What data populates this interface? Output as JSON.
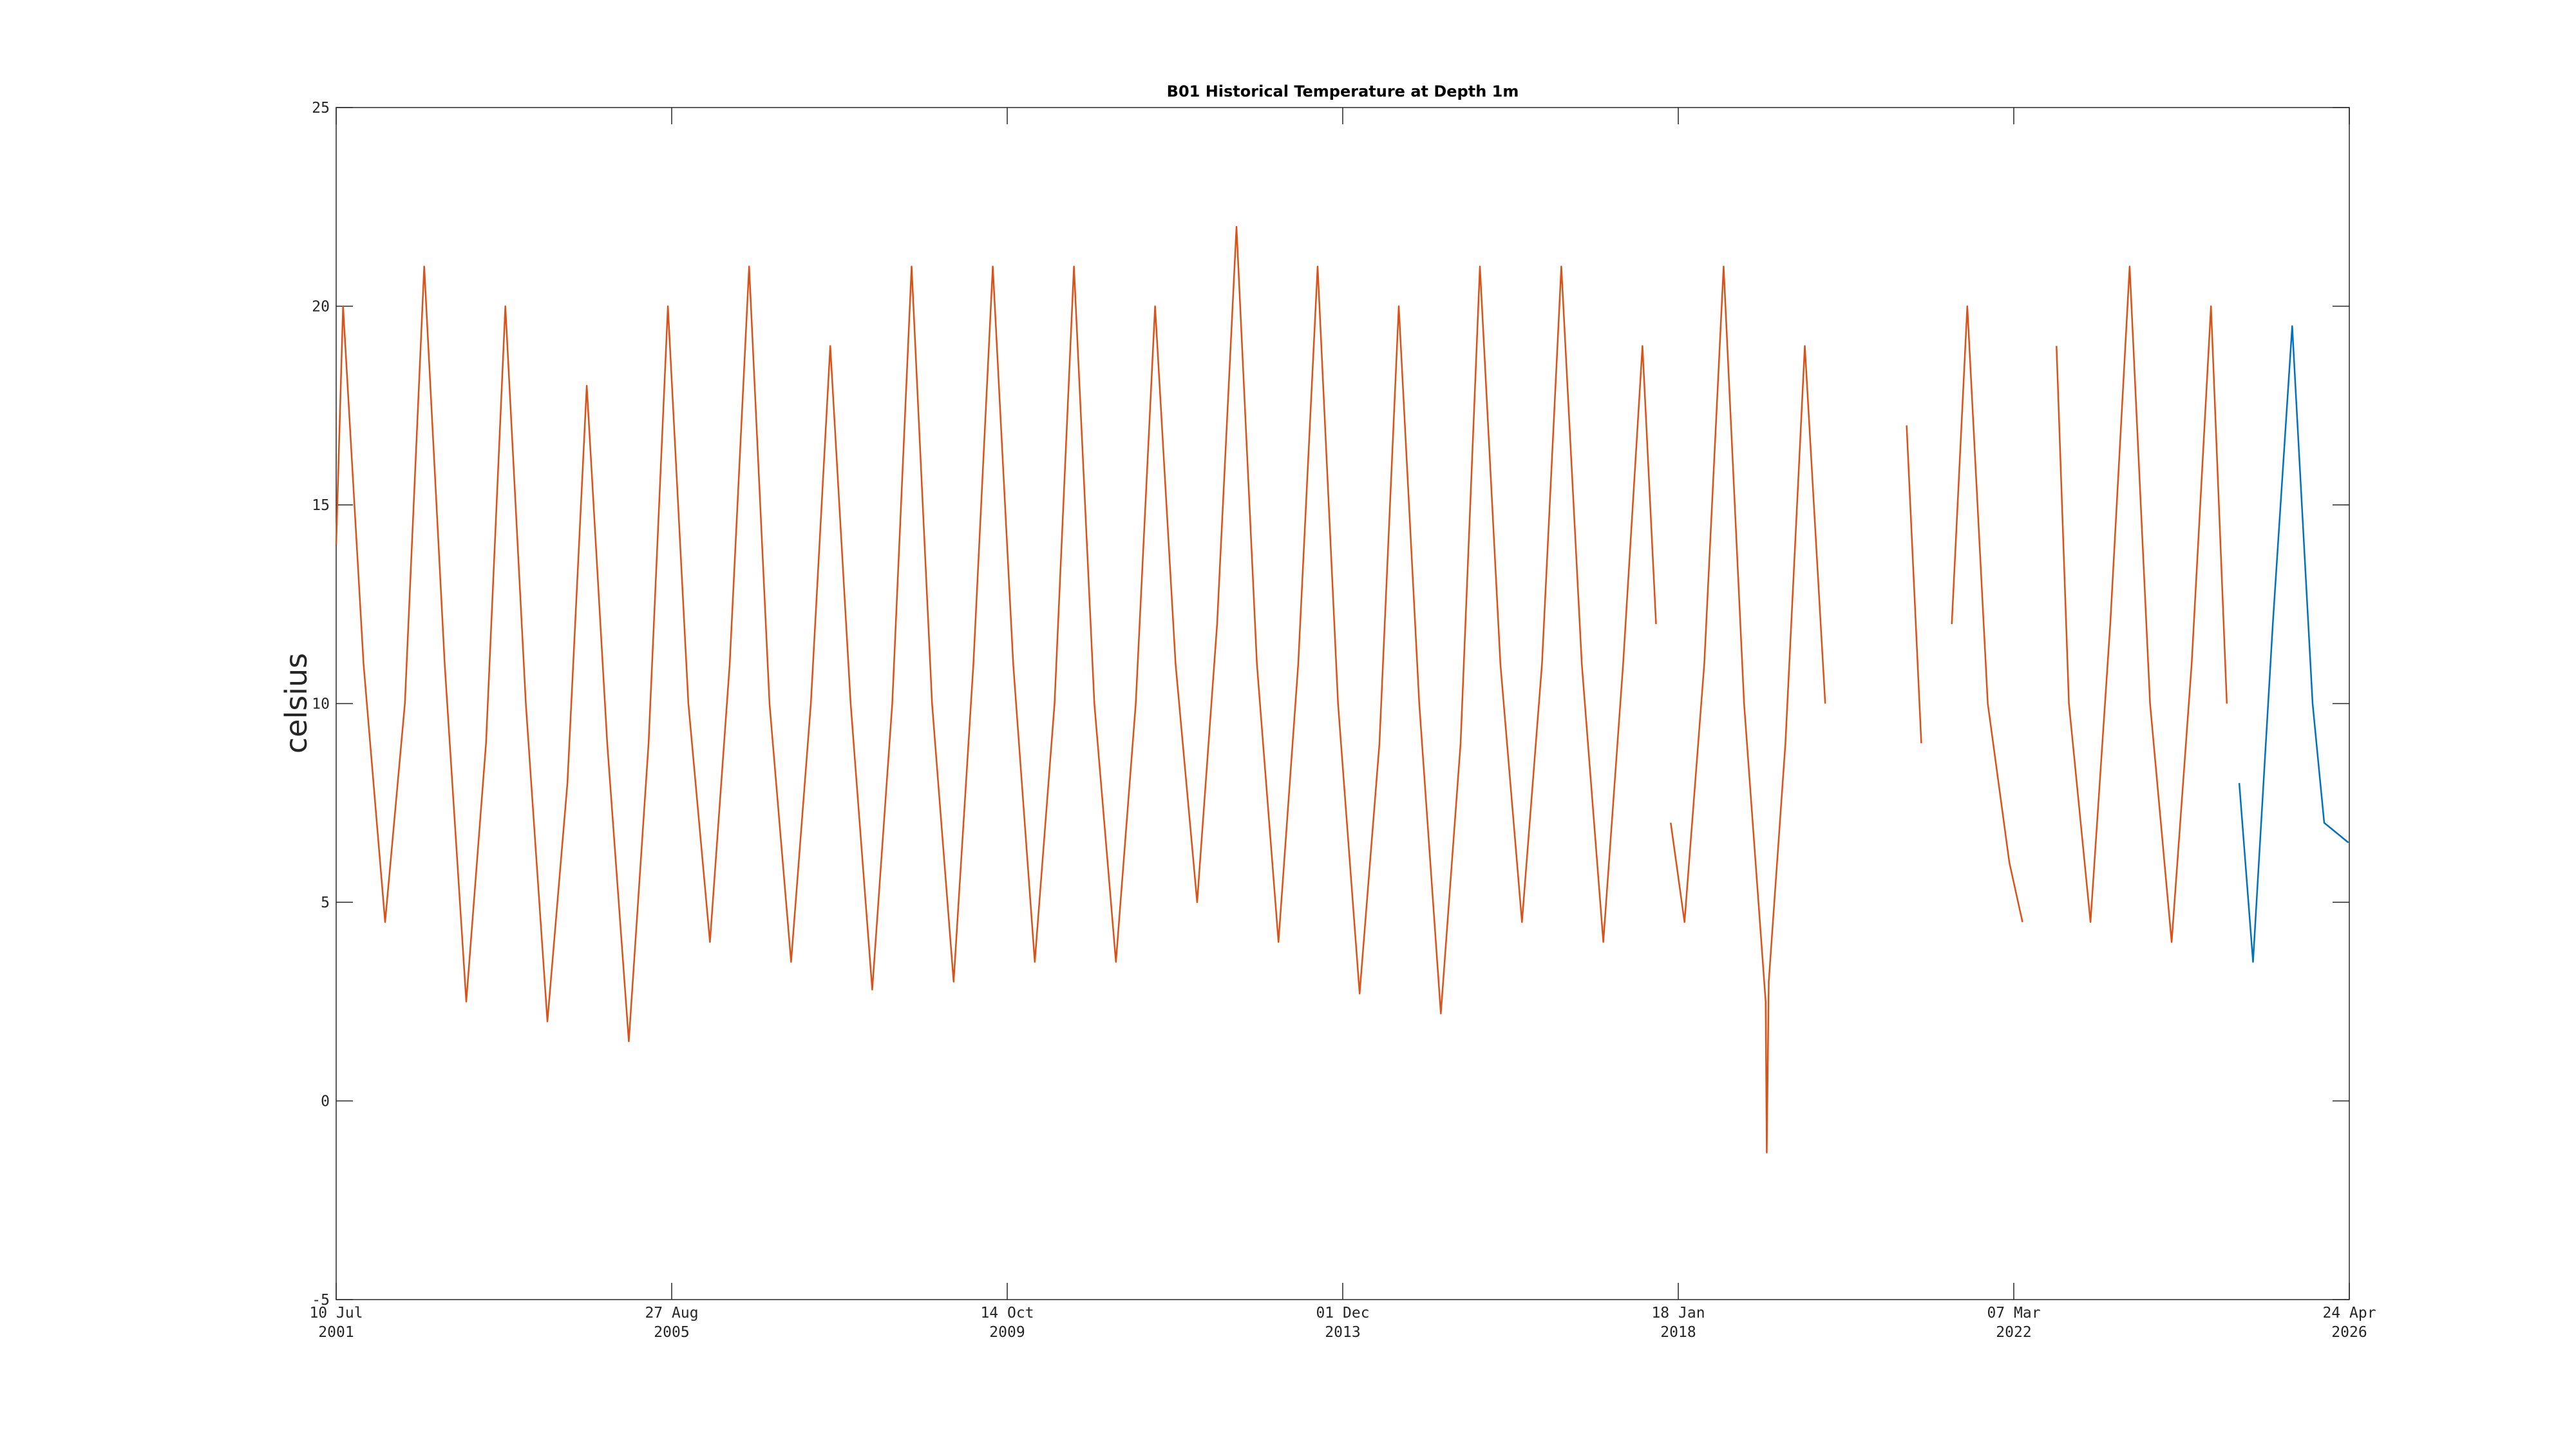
{
  "chart_data": {
    "type": "line",
    "title": "B01 Historical Temperature at Depth 1m",
    "ylabel": "celsius",
    "xlim": [
      "2001-07-10",
      "2026-04-24"
    ],
    "xticks": [
      {
        "value": "2001-07-10",
        "label": [
          "10 Jul",
          "2001"
        ]
      },
      {
        "value": "2005-08-27",
        "label": [
          "27 Aug",
          "2005"
        ]
      },
      {
        "value": "2009-10-14",
        "label": [
          "14 Oct",
          "2009"
        ]
      },
      {
        "value": "2013-12-01",
        "label": [
          "01 Dec",
          "2013"
        ]
      },
      {
        "value": "2018-01-18",
        "label": [
          "18 Jan",
          "2018"
        ]
      },
      {
        "value": "2022-03-07",
        "label": [
          "07 Mar",
          "2022"
        ]
      },
      {
        "value": "2026-04-24",
        "label": [
          "24 Apr",
          "2026"
        ]
      }
    ],
    "ylim": [
      -5,
      25
    ],
    "yticks": [
      -5,
      0,
      5,
      10,
      15,
      20,
      25
    ],
    "series": [
      {
        "color": "#d95319",
        "x": [
          "2001-07-10",
          "2001-08-10",
          "2001-11-10",
          "2002-02-15",
          "2002-05-15",
          "2002-08-10",
          "2002-11-10",
          "2003-02-15",
          "2003-05-15",
          "2003-08-10",
          "2003-11-10",
          "2004-02-15",
          "2004-05-15",
          "2004-08-10",
          "2004-11-10",
          "2005-02-15",
          "2005-05-15",
          "2005-08-10",
          "2005-11-10",
          "2006-02-15",
          "2006-05-15",
          "2006-08-10",
          "2006-11-10",
          "2007-02-15",
          "2007-05-15",
          "2007-08-10",
          "2007-11-10",
          "2008-02-15",
          "2008-05-15",
          "2008-08-10",
          "2008-11-10",
          "2009-02-15",
          "2009-05-15",
          "2009-08-10",
          "2009-11-10",
          "2010-02-15",
          "2010-05-15",
          "2010-08-10",
          "2010-11-10",
          "2011-02-15",
          "2011-05-15",
          "2011-08-10",
          "2011-11-10",
          "2012-02-15",
          "2012-05-15",
          "2012-08-10",
          "2012-11-10",
          "2013-02-15",
          "2013-05-15",
          "2013-08-10",
          "2013-11-10",
          "2014-02-15",
          "2014-05-15",
          "2014-08-10",
          "2014-11-10",
          "2015-02-15",
          "2015-05-15",
          "2015-08-10",
          "2015-11-10",
          "2016-02-15",
          "2016-05-15",
          "2016-08-10",
          "2016-11-10",
          "2017-02-15",
          "2017-05-15",
          "2017-08-10",
          "2017-10-10",
          "2017-11-10",
          "2017-12-15",
          "2018-02-15",
          "2018-05-15",
          "2018-08-10",
          "2018-11-10",
          "2019-02-15",
          "2019-02-20",
          "2019-03-01",
          "2019-05-15",
          "2019-08-10",
          "2019-11-10",
          "2020-05-15",
          "2020-11-10",
          "2021-01-15",
          "2021-03-15",
          "2021-06-01",
          "2021-08-10",
          "2021-11-10",
          "2022-02-15",
          "2022-04-15",
          "2022-06-15",
          "2022-09-15",
          "2022-11-10",
          "2023-02-15",
          "2023-05-15",
          "2023-08-10",
          "2023-11-10",
          "2024-02-15",
          "2024-05-15",
          "2024-08-10",
          "2024-10-20"
        ],
        "values": [
          14,
          20,
          11,
          4.5,
          10,
          21,
          11,
          2.5,
          9,
          20,
          10,
          2,
          8,
          18,
          9,
          1.5,
          9,
          20,
          10,
          4,
          11,
          21,
          10,
          3.5,
          10,
          19,
          10,
          2.8,
          10,
          21,
          10,
          3,
          11,
          21,
          11,
          3.5,
          10,
          21,
          10,
          3.5,
          10,
          20,
          11,
          5,
          12,
          22,
          11,
          4,
          11,
          21,
          10,
          2.7,
          9,
          20,
          10,
          2.2,
          9,
          21,
          11,
          4.5,
          11,
          21,
          11,
          4,
          11,
          19,
          12,
          null,
          7,
          4.5,
          11,
          21,
          10,
          2.5,
          -1.3,
          3,
          9,
          19,
          10,
          null,
          17,
          9,
          null,
          12,
          20,
          10,
          6,
          4.5,
          null,
          19,
          10,
          4.5,
          12,
          21,
          10,
          4,
          11,
          20,
          10
        ]
      },
      {
        "color": "#0072bd",
        "x": [
          "2024-12-15",
          "2025-02-15",
          "2025-05-15",
          "2025-08-10",
          "2025-11-10",
          "2026-01-01",
          "2026-04-20"
        ],
        "values": [
          8,
          3.5,
          12,
          19.5,
          10,
          7,
          6.5
        ]
      }
    ]
  }
}
